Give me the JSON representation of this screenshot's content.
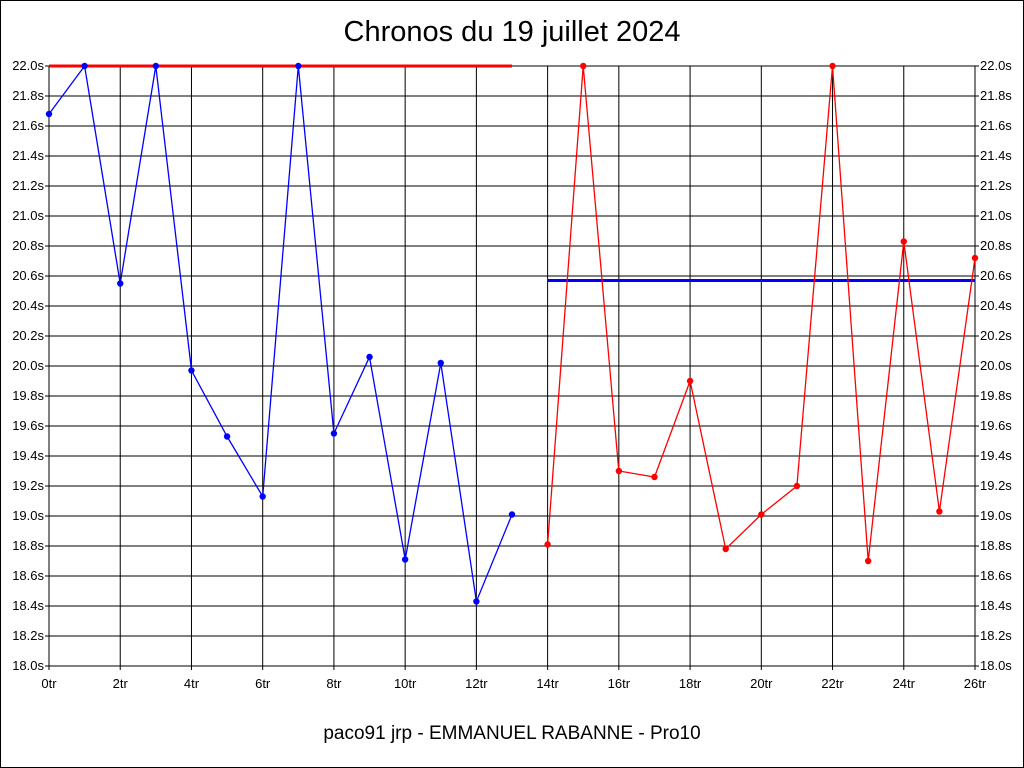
{
  "chart_data": {
    "type": "line",
    "title": "Chronos du 19 juillet 2024",
    "footer": "paco91 jrp - EMMANUEL RABANNE - Pro10",
    "x_tick_labels": [
      "0tr",
      "2tr",
      "4tr",
      "6tr",
      "8tr",
      "10tr",
      "12tr",
      "14tr",
      "16tr",
      "18tr",
      "20tr",
      "22tr",
      "24tr",
      "26tr"
    ],
    "x_ticks": [
      0,
      2,
      4,
      6,
      8,
      10,
      12,
      14,
      16,
      18,
      20,
      22,
      24,
      26
    ],
    "xlim": [
      0,
      26
    ],
    "y_tick_labels": [
      "18.0s",
      "18.2s",
      "18.4s",
      "18.6s",
      "18.8s",
      "19.0s",
      "19.2s",
      "19.4s",
      "19.6s",
      "19.8s",
      "20.0s",
      "20.2s",
      "20.4s",
      "20.6s",
      "20.8s",
      "21.0s",
      "21.2s",
      "21.4s",
      "21.6s",
      "21.8s",
      "22.0s"
    ],
    "y_ticks": [
      18.0,
      18.2,
      18.4,
      18.6,
      18.8,
      19.0,
      19.2,
      19.4,
      19.6,
      19.8,
      20.0,
      20.2,
      20.4,
      20.6,
      20.8,
      21.0,
      21.2,
      21.4,
      21.6,
      21.8,
      22.0
    ],
    "ylim": [
      18.0,
      22.0
    ],
    "grid": true,
    "series": [
      {
        "color": "#0000ff",
        "x": [
          0,
          1,
          2,
          3,
          4,
          5,
          6,
          7,
          8,
          9,
          10,
          11,
          12,
          13
        ],
        "values": [
          21.68,
          22.0,
          20.55,
          22.0,
          19.97,
          19.53,
          19.13,
          22.0,
          19.55,
          20.06,
          18.71,
          20.02,
          18.43,
          19.01
        ]
      },
      {
        "color": "#ff0000",
        "x": [
          14,
          15,
          16,
          17,
          18,
          19,
          20,
          21,
          22,
          23,
          24,
          25,
          26
        ],
        "values": [
          18.81,
          22.0,
          19.3,
          19.26,
          19.9,
          18.78,
          19.01,
          19.2,
          22.0,
          18.7,
          20.83,
          19.03,
          20.72
        ]
      }
    ],
    "reference_lines": [
      {
        "color": "#ff0000",
        "value": 22.0,
        "x_range": [
          0,
          13
        ]
      },
      {
        "color": "#0000ff",
        "value": 20.57,
        "x_range": [
          14,
          26
        ]
      }
    ]
  }
}
